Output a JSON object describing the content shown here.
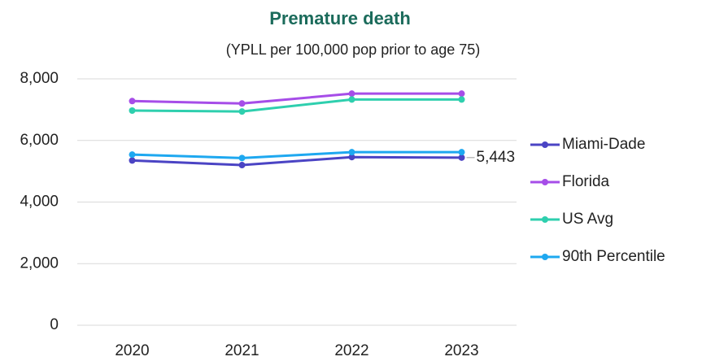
{
  "chart_data": {
    "type": "line",
    "title": "Premature death",
    "subtitle": "(YPLL per 100,000 pop prior to age 75)",
    "categories": [
      "2020",
      "2021",
      "2022",
      "2023"
    ],
    "series": [
      {
        "name": "Miami-Dade",
        "color": "#4b44c4",
        "values": [
          5350,
          5200,
          5460,
          5443
        ],
        "value_labels": [
          null,
          null,
          null,
          "5,443"
        ]
      },
      {
        "name": "Florida",
        "color": "#a64de8",
        "values": [
          7280,
          7200,
          7520,
          7520
        ]
      },
      {
        "name": "US Avg",
        "color": "#2ecfae",
        "values": [
          6970,
          6940,
          7330,
          7330
        ]
      },
      {
        "name": "90th Percentile",
        "color": "#1ea8f0",
        "values": [
          5540,
          5430,
          5620,
          5620
        ]
      }
    ],
    "ylim": [
      0,
      8000
    ],
    "yticks": [
      0,
      {
        "value": 2000,
        "label": "2,000"
      },
      {
        "value": 4000,
        "label": "4,000"
      },
      {
        "value": 6000,
        "label": "6,000"
      },
      {
        "value": 8000,
        "label": "8,000"
      }
    ],
    "grid": true,
    "legend": "right"
  }
}
